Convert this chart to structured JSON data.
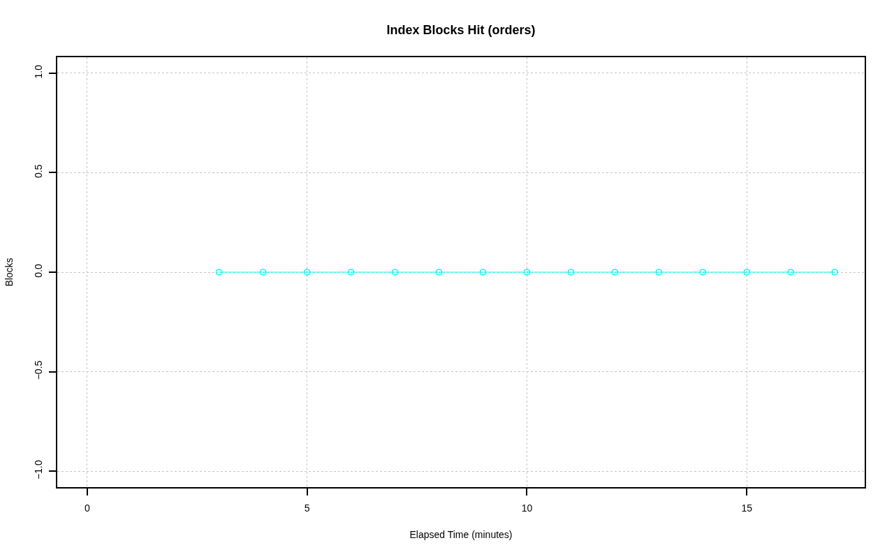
{
  "chart_data": {
    "type": "line",
    "title": "Index Blocks Hit (orders)",
    "xlabel": "Elapsed Time (minutes)",
    "ylabel": "Blocks",
    "x": [
      3,
      4,
      5,
      6,
      7,
      8,
      9,
      10,
      11,
      12,
      13,
      14,
      15,
      16,
      17
    ],
    "series": [
      {
        "color": "#00ffff",
        "values": [
          0,
          0,
          0,
          0,
          0,
          0,
          0,
          0,
          0,
          0,
          0,
          0,
          0,
          0,
          0
        ]
      }
    ],
    "xlim": [
      -0.68,
      17.68
    ],
    "xticks": [
      0,
      5,
      10,
      15
    ],
    "ylim": [
      -1.08,
      1.08
    ],
    "yticks": [
      {
        "value": -1,
        "label": "−1.0"
      },
      {
        "value": -0.5,
        "label": "−0.5"
      },
      {
        "value": 0,
        "label": "0.0"
      },
      {
        "value": 0.5,
        "label": "0.5"
      },
      {
        "value": 1,
        "label": "1.0"
      }
    ],
    "grid": true,
    "marker": "circle",
    "line_style": "solid"
  }
}
